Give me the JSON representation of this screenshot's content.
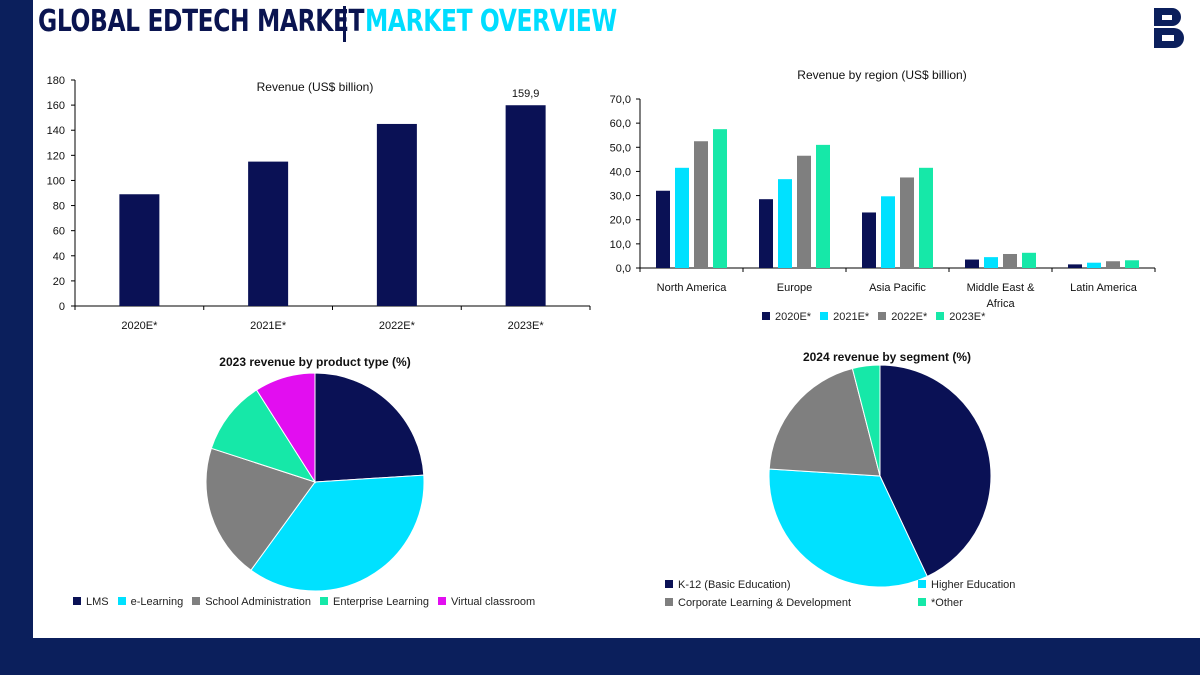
{
  "header": {
    "title_left": "GLOBAL EDTECH MARKET",
    "title_right": "MARKET OVERVIEW",
    "logo_icon": "b-letter-logo-icon"
  },
  "colors": {
    "navy": "#0a1155",
    "cyan": "#00e1ff",
    "grey": "#7f7f7f",
    "green": "#16e8a8",
    "magenta": "#e20ef0",
    "brand_bg": "#0b1f5c"
  },
  "chart_data": [
    {
      "id": "revenue",
      "type": "bar",
      "title": "Revenue (US$ billion)",
      "categories": [
        "2020E*",
        "2021E*",
        "2022E*",
        "2023E*"
      ],
      "values": [
        89,
        115,
        145,
        159.9
      ],
      "data_labels": [
        "",
        "",
        "",
        "159,9"
      ],
      "ylim": [
        0,
        180
      ],
      "yticks": [
        0,
        20,
        40,
        60,
        80,
        100,
        120,
        140,
        160,
        180
      ],
      "ytick_labels": [
        "0",
        "20",
        "40",
        "60",
        "80",
        "100",
        "120",
        "140",
        "160",
        "180"
      ],
      "xlabel": "",
      "ylabel": ""
    },
    {
      "id": "region",
      "type": "bar",
      "title": "Revenue by region (US$ billion)",
      "categories": [
        "North America",
        "Europe",
        "Asia Pacific",
        "Middle East & Africa",
        "Latin America"
      ],
      "category_lines": [
        [
          "North America"
        ],
        [
          "Europe"
        ],
        [
          "Asia Pacific"
        ],
        [
          "Middle East &",
          "Africa"
        ],
        [
          "Latin America"
        ]
      ],
      "series": [
        {
          "name": "2020E*",
          "values": [
            32.0,
            28.5,
            23.0,
            3.5,
            1.5
          ]
        },
        {
          "name": "2021E*",
          "values": [
            41.5,
            36.8,
            29.7,
            4.5,
            2.2
          ]
        },
        {
          "name": "2022E*",
          "values": [
            52.5,
            46.5,
            37.5,
            5.8,
            2.8
          ]
        },
        {
          "name": "2023E*",
          "values": [
            57.5,
            51.0,
            41.5,
            6.3,
            3.2
          ]
        }
      ],
      "ylim": [
        0,
        70
      ],
      "yticks": [
        0,
        10,
        20,
        30,
        40,
        50,
        60,
        70
      ],
      "ytick_labels": [
        "0,0",
        "10,0",
        "20,0",
        "30,0",
        "40,0",
        "50,0",
        "60,0",
        "70,0"
      ],
      "legend_position": "bottom"
    },
    {
      "id": "product",
      "type": "pie",
      "title": "2023 revenue by product type (%)",
      "labels": [
        "LMS",
        "e-Learning",
        "School Administration",
        "Enterprise Learning",
        "Virtual classroom"
      ],
      "values": [
        24,
        36,
        20,
        11,
        9
      ],
      "legend_position": "bottom"
    },
    {
      "id": "segment",
      "type": "pie",
      "title": "2024 revenue by segment (%)",
      "labels": [
        "K-12 (Basic Education)",
        "Higher Education",
        "Corporate Learning & Development",
        "*Other"
      ],
      "values": [
        43,
        33,
        20,
        4
      ],
      "legend_position": "bottom"
    }
  ]
}
